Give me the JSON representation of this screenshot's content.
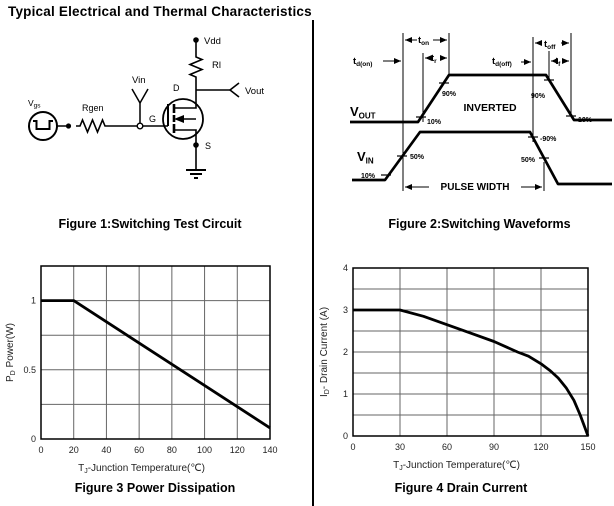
{
  "title": "Typical Electrical and Thermal Characteristics",
  "figure1": {
    "caption": "Figure 1:Switching Test Circuit",
    "labels": {
      "vdd": "Vdd",
      "rl": "Rl",
      "vout": "Vout",
      "vin": "Vin",
      "vgs_v": "V",
      "vgs_sub": "gs",
      "rgen": "Rgen",
      "g": "G",
      "d": "D",
      "s": "S"
    }
  },
  "figure2": {
    "caption": "Figure 2:Switching Waveforms",
    "labels": {
      "t": "t",
      "on": "on",
      "r": "r",
      "d_on": "d(on)",
      "d_off": "d(off)",
      "off": "off",
      "f": "f",
      "v": "V",
      "out": "OUT",
      "in": "IN",
      "inverted": "INVERTED",
      "pulse_width": "PULSE WIDTH",
      "p90": "90%",
      "p10": "10%",
      "p50": "50%",
      "pm90": "-90%"
    }
  },
  "chart_data": [
    {
      "type": "line",
      "title": "Figure 3 Power Dissipation",
      "xlabel_parts": {
        "pre": "T",
        "sub": "J",
        "post": "-Junction Temperature(℃)"
      },
      "ylabel_parts": {
        "pre": "P",
        "sub": "D",
        "post": "  Power(W)"
      },
      "xlim": [
        0,
        140
      ],
      "ylim": [
        0,
        1.25
      ],
      "xticks": [
        0,
        20,
        40,
        60,
        80,
        100,
        120,
        140
      ],
      "yticks": [
        0,
        0.5,
        1
      ],
      "xgrid_step": 20,
      "ygrid_step": 0.25,
      "grid": true,
      "legend": false,
      "points": [
        [
          0,
          1
        ],
        [
          20,
          1
        ],
        [
          140,
          0.08
        ]
      ]
    },
    {
      "type": "line",
      "title": "Figure 4 Drain Current",
      "xlabel_parts": {
        "pre": "T",
        "sub": "J",
        "post": "-Junction Temperature(℃)"
      },
      "ylabel_parts": {
        "pre": "I",
        "sub": "D",
        "post": "- Drain Current (A)"
      },
      "xlim": [
        0,
        150
      ],
      "ylim": [
        0,
        4
      ],
      "xticks": [
        0,
        30,
        60,
        90,
        120,
        150
      ],
      "yticks": [
        0,
        1,
        2,
        3,
        4
      ],
      "xgrid_step": 30,
      "ygrid_step": 0.5,
      "grid": true,
      "legend": false,
      "points": [
        [
          0,
          3
        ],
        [
          30,
          3
        ],
        [
          45,
          2.85
        ],
        [
          60,
          2.65
        ],
        [
          75,
          2.45
        ],
        [
          90,
          2.25
        ],
        [
          105,
          2.0
        ],
        [
          112,
          1.9
        ],
        [
          120,
          1.72
        ],
        [
          126,
          1.55
        ],
        [
          131,
          1.38
        ],
        [
          136,
          1.15
        ],
        [
          141,
          0.85
        ],
        [
          145,
          0.5
        ],
        [
          148,
          0.2
        ],
        [
          150,
          0
        ]
      ]
    }
  ]
}
